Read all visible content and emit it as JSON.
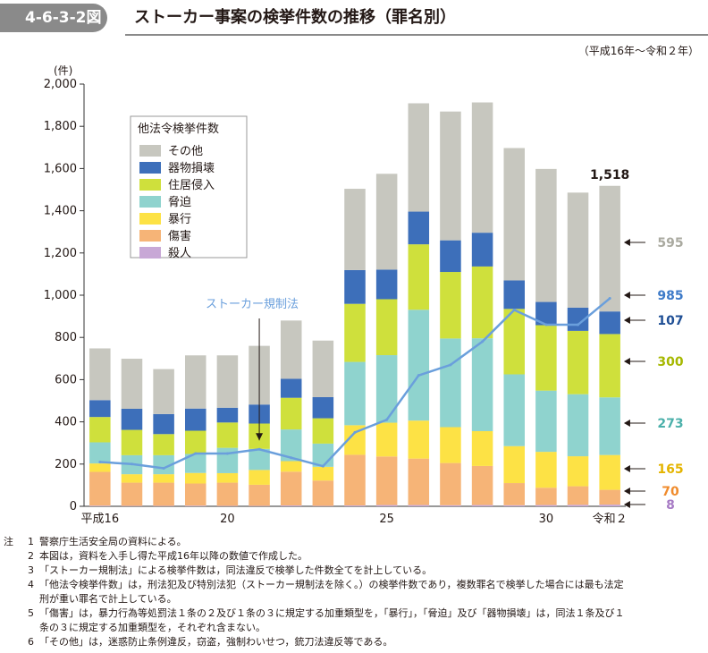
{
  "header": {
    "figure_number": "4-6-3-2図",
    "title": "ストーカー事案の検挙件数の推移（罪名別）",
    "period": "（平成16年～令和２年）"
  },
  "chart_data": {
    "type": "bar",
    "stacked": true,
    "unit": "(件)",
    "ylim": [
      0,
      2000
    ],
    "yticks": [
      "0",
      "200",
      "400",
      "600",
      "800",
      "1,000",
      "1,200",
      "1,400",
      "1,600",
      "1,800",
      "2,000"
    ],
    "categories": [
      "平成16",
      "17",
      "18",
      "19",
      "20",
      "21",
      "22",
      "23",
      "24",
      "25",
      "26",
      "27",
      "28",
      "29",
      "30",
      "令和元",
      "令和2"
    ],
    "x_tick_labels": [
      {
        "index": 0,
        "label": "平成16"
      },
      {
        "index": 4,
        "label": "20"
      },
      {
        "index": 9,
        "label": "25"
      },
      {
        "index": 14,
        "label": "30"
      },
      {
        "index": 16,
        "label": "令和２"
      }
    ],
    "legend_title": "他法令検挙件数",
    "series": [
      {
        "name": "殺人",
        "color": "#c8a8d6",
        "values": [
          3,
          2,
          2,
          3,
          2,
          2,
          4,
          2,
          4,
          6,
          6,
          5,
          6,
          5,
          6,
          7,
          8
        ]
      },
      {
        "name": "傷害",
        "color": "#f6b477",
        "values": [
          160,
          110,
          110,
          105,
          110,
          100,
          160,
          120,
          240,
          230,
          220,
          200,
          185,
          105,
          82,
          88,
          70
        ]
      },
      {
        "name": "暴行",
        "color": "#fde245",
        "values": [
          40,
          40,
          40,
          50,
          45,
          70,
          50,
          65,
          140,
          160,
          180,
          170,
          165,
          175,
          170,
          142,
          165
        ]
      },
      {
        "name": "脅迫",
        "color": "#8fd3ce",
        "values": [
          100,
          90,
          90,
          90,
          120,
          100,
          150,
          110,
          300,
          320,
          525,
          420,
          440,
          340,
          290,
          294,
          273
        ]
      },
      {
        "name": "住居侵入",
        "color": "#cfe03c",
        "values": [
          120,
          120,
          100,
          110,
          120,
          120,
          150,
          120,
          275,
          265,
          310,
          315,
          340,
          310,
          310,
          300,
          300
        ]
      },
      {
        "name": "器物損壊",
        "color": "#3d6fba",
        "values": [
          80,
          100,
          95,
          105,
          70,
          90,
          90,
          100,
          160,
          140,
          155,
          150,
          160,
          135,
          110,
          110,
          107
        ]
      },
      {
        "name": "その他",
        "color": "#c7c7bf",
        "values": [
          245,
          237,
          213,
          252,
          248,
          278,
          276,
          268,
          385,
          454,
          513,
          610,
          617,
          627,
          630,
          545,
          595
        ]
      }
    ],
    "line": {
      "name": "ストーカー規制法",
      "color": "#6a9fdc",
      "values": [
        210,
        200,
        180,
        250,
        250,
        270,
        230,
        190,
        350,
        410,
        620,
        670,
        780,
        930,
        860,
        860,
        985
      ]
    },
    "annotations": {
      "total_last": "1,518",
      "line_last": "985",
      "segments_last": [
        {
          "series": "その他",
          "label": "595",
          "color": "#aaaaa0"
        },
        {
          "series": "器物損壊",
          "label": "107",
          "color": "#1f4f95"
        },
        {
          "series": "住居侵入",
          "label": "300",
          "color": "#a6b800"
        },
        {
          "series": "脅迫",
          "label": "273",
          "color": "#4bb0aa"
        },
        {
          "series": "暴行",
          "label": "165",
          "color": "#e4b400"
        },
        {
          "series": "傷害",
          "label": "70",
          "color": "#f08b2c"
        },
        {
          "series": "殺人",
          "label": "8",
          "color": "#a77bc5"
        }
      ]
    }
  },
  "notes": {
    "head": "注",
    "items": [
      {
        "num": "1",
        "text": "警察庁生活安全局の資料による。"
      },
      {
        "num": "2",
        "text": "本図は，資料を入手し得た平成16年以降の数値で作成した。"
      },
      {
        "num": "3",
        "text": "「ストーカー規制法」による検挙件数は，同法違反で検挙した件数全てを計上している。"
      },
      {
        "num": "4",
        "text": "「他法令検挙件数」は，刑法犯及び特別法犯（ストーカー規制法を除く。）の検挙件数であり，複数罪名で検挙した場合には最も法定"
      },
      {
        "num": "",
        "text": "刑が重い罪名で計上している。"
      },
      {
        "num": "5",
        "text": "「傷害」は，暴力行為等処罰法１条の２及び１条の３に規定する加重類型を，「暴行」，「脅迫」及び「器物損壊」は，同法１条及び１"
      },
      {
        "num": "",
        "text": "条の３に規定する加重類型を，それぞれ含まない。"
      },
      {
        "num": "6",
        "text": "「その他」は，迷惑防止条例違反，窃盗，強制わいせつ，銃刀法違反等である。"
      }
    ]
  }
}
